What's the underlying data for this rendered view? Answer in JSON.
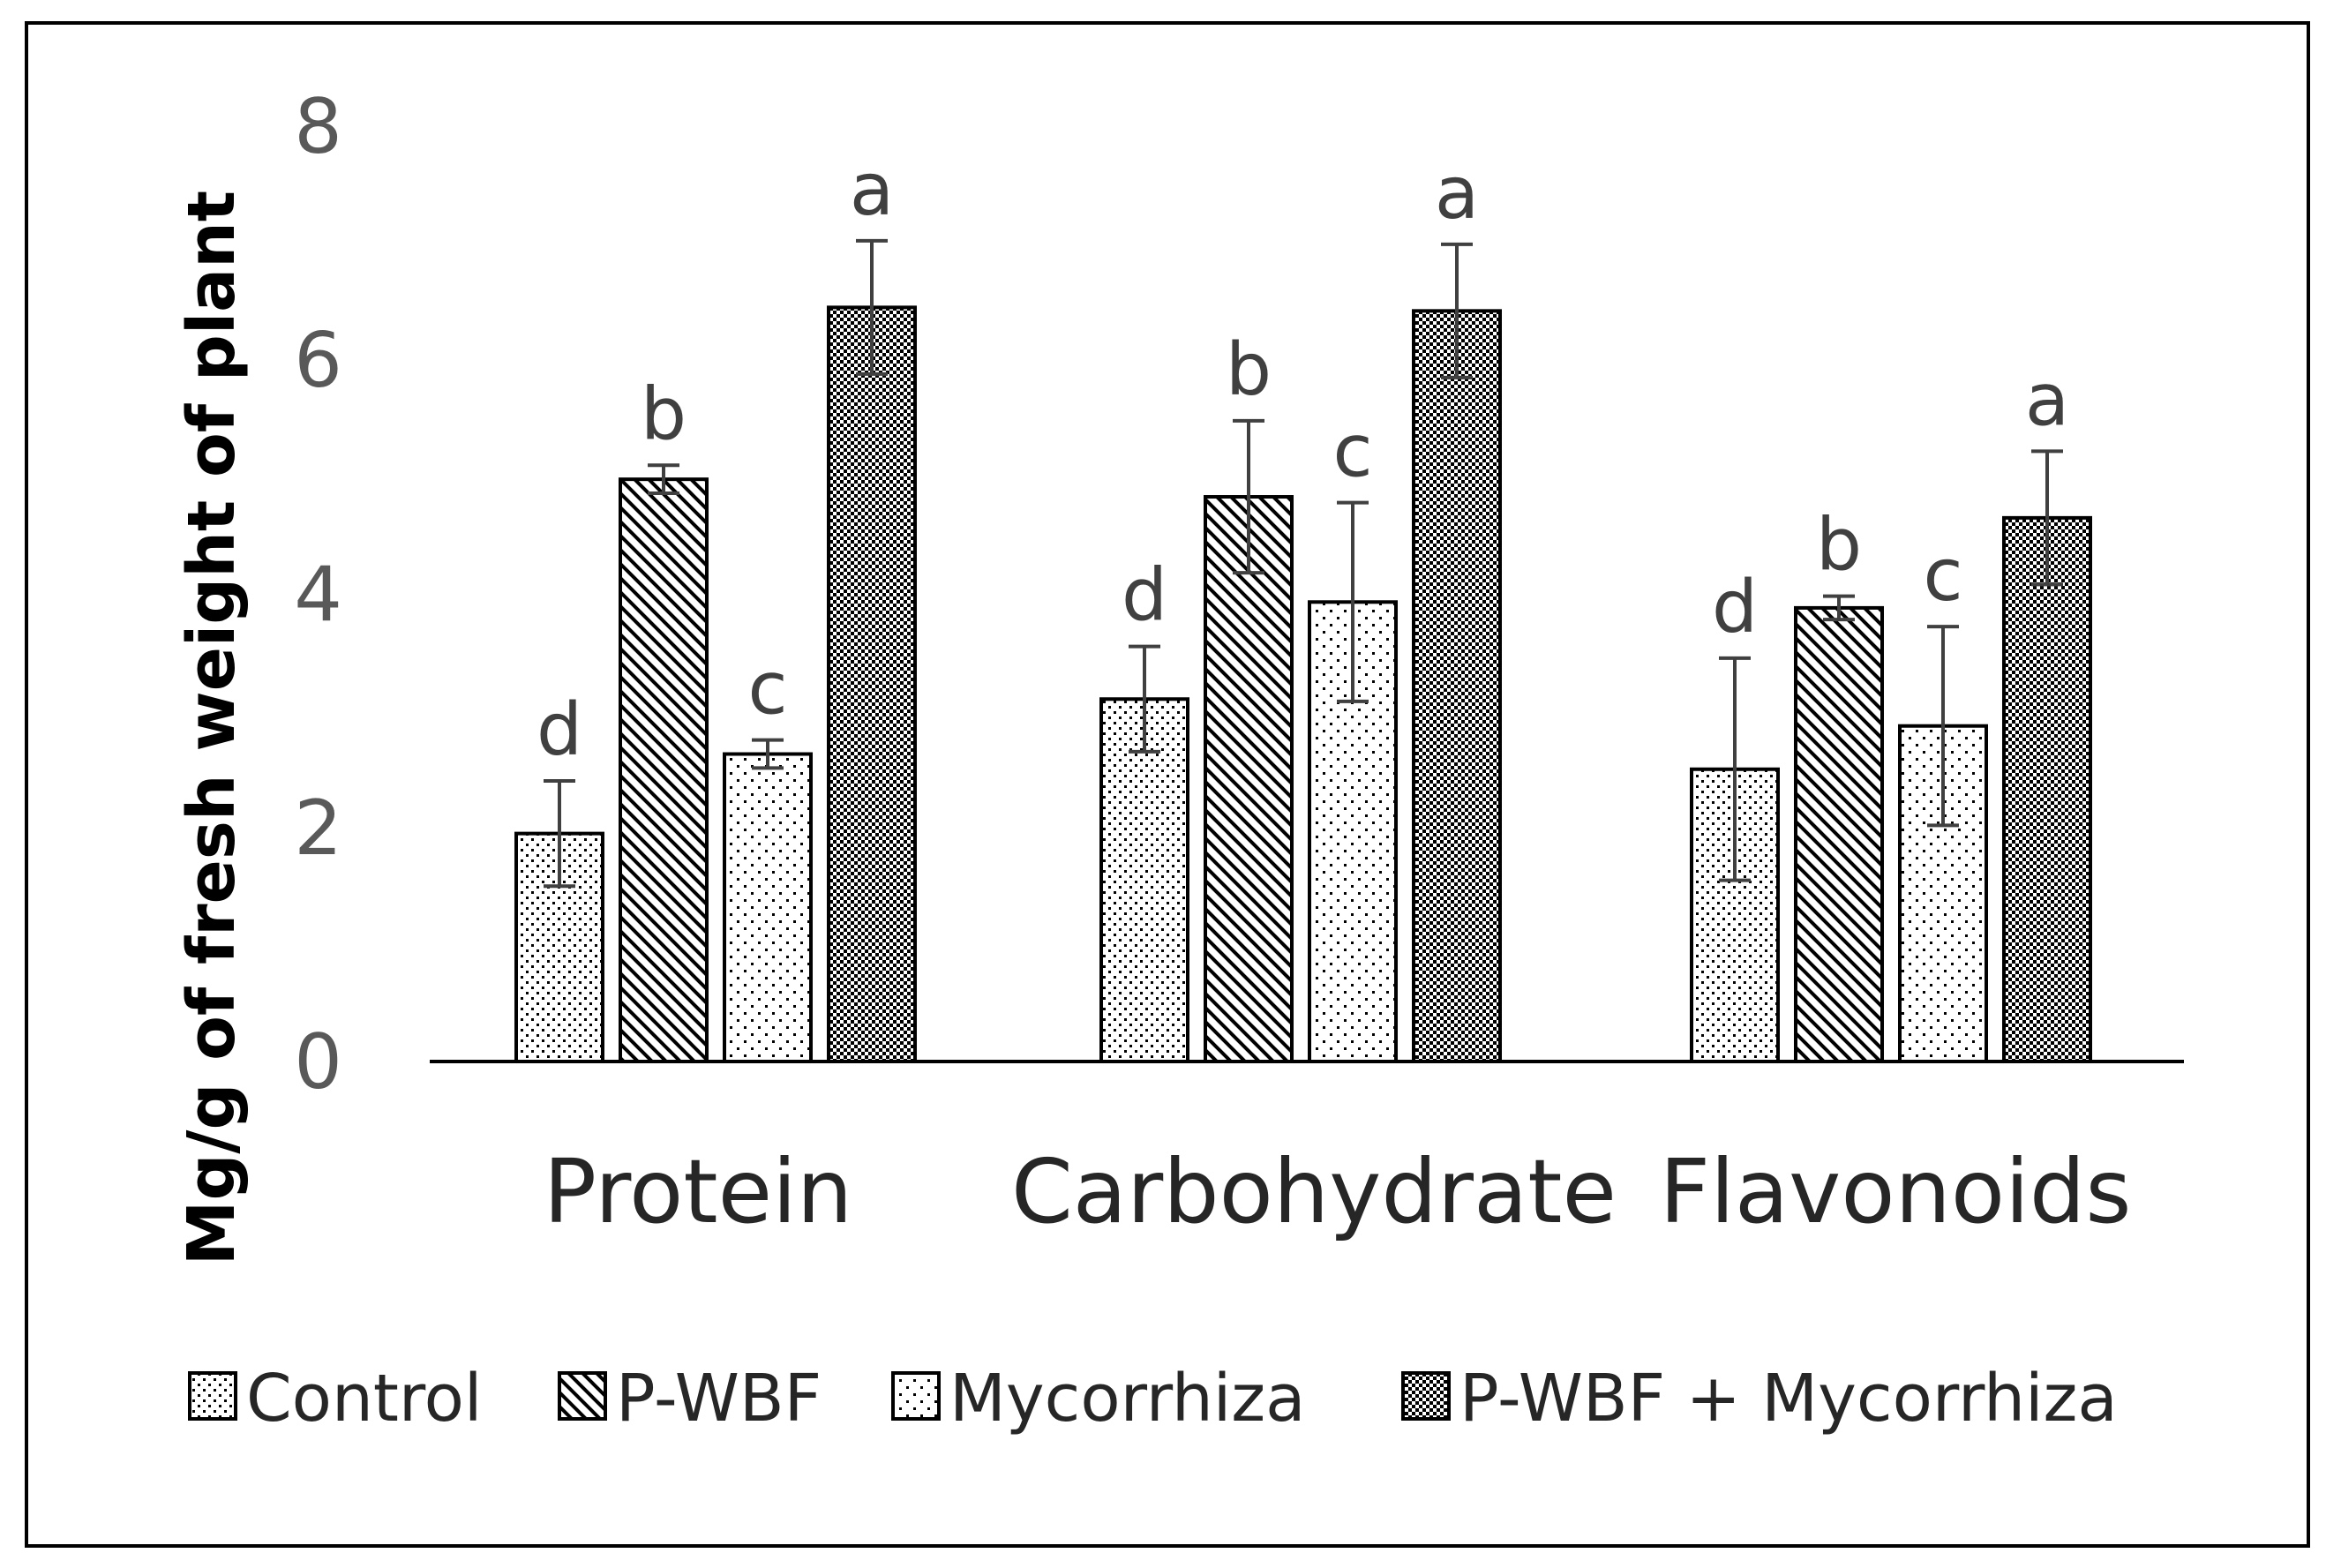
{
  "chart_data": {
    "type": "bar",
    "title": "",
    "xlabel": "",
    "ylabel": "Mg/g of fresh weight of plant",
    "ylim": [
      0,
      8
    ],
    "yticks": [
      0,
      2,
      4,
      6,
      8
    ],
    "ytick_labels": [
      "0",
      "2",
      "4",
      "6",
      "8"
    ],
    "grid": false,
    "legend_position": "bottom",
    "categories": [
      "Protein",
      "Carbohydrate",
      "Flavonoids"
    ],
    "series": [
      {
        "name": "Control",
        "pattern": "dots",
        "values": [
          1.95,
          3.1,
          2.5
        ],
        "errors": [
          0.45,
          0.45,
          0.95
        ],
        "labels": [
          "d",
          "d",
          "d"
        ]
      },
      {
        "name": "P-WBF",
        "pattern": "diagonal",
        "values": [
          4.98,
          4.83,
          3.88
        ],
        "errors": [
          0.12,
          0.65,
          0.1
        ],
        "labels": [
          "b",
          "b",
          "b"
        ]
      },
      {
        "name": "Mycorrhiza",
        "pattern": "sparse-dots",
        "values": [
          2.63,
          3.93,
          2.87
        ],
        "errors": [
          0.12,
          0.85,
          0.85
        ],
        "labels": [
          "c",
          "c",
          "c"
        ]
      },
      {
        "name": "P-WBF + Mycorrhiza",
        "pattern": "checker",
        "values": [
          6.45,
          6.42,
          4.65
        ],
        "errors": [
          0.57,
          0.57,
          0.57
        ],
        "labels": [
          "a",
          "a",
          "a"
        ]
      }
    ],
    "colors": {
      "bar_edge": "#000000",
      "pattern_ink": "#000000",
      "axis": "#000000",
      "error_bar": "#404040"
    }
  }
}
